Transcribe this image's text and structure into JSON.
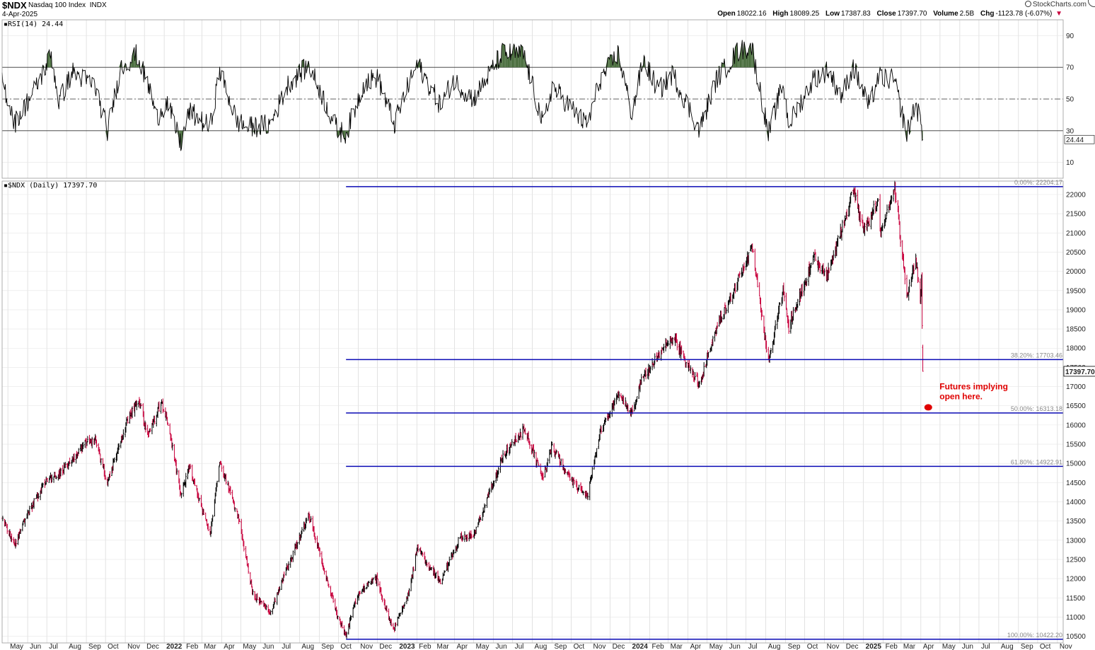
{
  "header": {
    "symbol": "$NDX",
    "name": "Nasdaq 100 Index",
    "exchange": "INDX",
    "date": "4-Apr-2025",
    "brand": "StockCharts.com",
    "open_label": "Open",
    "open": "18022.16",
    "high_label": "High",
    "high": "18089.25",
    "low_label": "Low",
    "low": "17387.83",
    "close_label": "Close",
    "close": "17397.70",
    "volume_label": "Volume",
    "volume": "2.5B",
    "chg_label": "Chg",
    "chg": "-1123.78 (-6.07%)",
    "chg_arrow": "▼"
  },
  "colors": {
    "grid": "#d0d0d0",
    "fib_line": "#0a0ab4",
    "up_bar": "#000000",
    "down_bar": "#c8003c",
    "rsi_line": "#000000",
    "rsi_fill": "#4a6e3e",
    "annotation": "#e00000"
  },
  "chart_data": [
    {
      "type": "line",
      "label": "RSI(14) 24.44",
      "series": [
        {
          "name": "RSI(14)",
          "last": 24.44
        }
      ],
      "ylim": [
        0,
        100
      ],
      "y_ticks": [
        10,
        30,
        50,
        70,
        90
      ],
      "ref_levels": [
        30,
        50,
        70
      ],
      "keypoints": [
        [
          "2021-04-22",
          62
        ],
        [
          "2021-05-12",
          35
        ],
        [
          "2021-06-15",
          58
        ],
        [
          "2021-07-08",
          78
        ],
        [
          "2021-07-20",
          48
        ],
        [
          "2021-08-10",
          67
        ],
        [
          "2021-09-15",
          58
        ],
        [
          "2021-10-04",
          30
        ],
        [
          "2021-10-25",
          70
        ],
        [
          "2021-11-19",
          78
        ],
        [
          "2021-12-10",
          55
        ],
        [
          "2021-12-20",
          38
        ],
        [
          "2022-01-05",
          48
        ],
        [
          "2022-01-27",
          22
        ],
        [
          "2022-02-10",
          42
        ],
        [
          "2022-03-14",
          32
        ],
        [
          "2022-03-29",
          68
        ],
        [
          "2022-04-25",
          36
        ],
        [
          "2022-05-12",
          32
        ],
        [
          "2022-06-16",
          34
        ],
        [
          "2022-07-15",
          60
        ],
        [
          "2022-08-16",
          71
        ],
        [
          "2022-09-30",
          30
        ],
        [
          "2022-10-13",
          28
        ],
        [
          "2022-11-10",
          60
        ],
        [
          "2022-12-01",
          64
        ],
        [
          "2022-12-28",
          34
        ],
        [
          "2023-01-15",
          55
        ],
        [
          "2023-02-02",
          72
        ],
        [
          "2023-03-10",
          46
        ],
        [
          "2023-03-30",
          62
        ],
        [
          "2023-05-01",
          50
        ],
        [
          "2023-06-15",
          79
        ],
        [
          "2023-07-19",
          78
        ],
        [
          "2023-08-18",
          33
        ],
        [
          "2023-09-01",
          58
        ],
        [
          "2023-10-26",
          33
        ],
        [
          "2023-11-15",
          62
        ],
        [
          "2023-12-14",
          79
        ],
        [
          "2024-01-04",
          40
        ],
        [
          "2024-01-22",
          75
        ],
        [
          "2024-02-15",
          55
        ],
        [
          "2024-03-08",
          66
        ],
        [
          "2024-04-19",
          30
        ],
        [
          "2024-05-15",
          62
        ],
        [
          "2024-06-18",
          80
        ],
        [
          "2024-07-10",
          83
        ],
        [
          "2024-08-05",
          28
        ],
        [
          "2024-08-28",
          60
        ],
        [
          "2024-09-06",
          34
        ],
        [
          "2024-10-15",
          63
        ],
        [
          "2024-11-06",
          68
        ],
        [
          "2024-11-28",
          52
        ],
        [
          "2024-12-16",
          70
        ],
        [
          "2025-01-10",
          45
        ],
        [
          "2025-01-24",
          64
        ],
        [
          "2025-02-18",
          62
        ],
        [
          "2025-03-10",
          28
        ],
        [
          "2025-03-24",
          48
        ],
        [
          "2025-03-31",
          35
        ],
        [
          "2025-04-04",
          24.44
        ]
      ]
    },
    {
      "type": "bar",
      "label": "$NDX (Daily) 17397.70",
      "series": [
        {
          "name": "$NDX (Daily)",
          "last": 17397.7
        }
      ],
      "ylim": [
        10400,
        22350
      ],
      "y_ticks": [
        10500,
        11000,
        11500,
        12000,
        12500,
        13000,
        13500,
        14000,
        14500,
        15000,
        15500,
        16000,
        16500,
        17000,
        17500,
        18000,
        18500,
        19000,
        19500,
        20000,
        20500,
        21000,
        21500,
        22000
      ],
      "last_price_tag": "17397.70",
      "x_ticks": [
        "May",
        "Jun",
        "Jul",
        "Aug",
        "Sep",
        "Oct",
        "Nov",
        "Dec",
        "2022",
        "Feb",
        "Mar",
        "Apr",
        "May",
        "Jun",
        "Jul",
        "Aug",
        "Sep",
        "Oct",
        "Nov",
        "Dec",
        "2023",
        "Feb",
        "Mar",
        "Apr",
        "May",
        "Jun",
        "Jul",
        "Aug",
        "Sep",
        "Oct",
        "Nov",
        "Dec",
        "2024",
        "Feb",
        "Mar",
        "Apr",
        "May",
        "Jun",
        "Jul",
        "Aug",
        "Sep",
        "Oct",
        "Nov",
        "Dec",
        "2025",
        "Feb",
        "Mar",
        "Apr",
        "May",
        "Jun",
        "Jul",
        "Aug",
        "Sep",
        "Oct",
        "Nov"
      ],
      "x_tick_bold": [
        "2022",
        "2023",
        "2024",
        "2025"
      ],
      "x_range": [
        "2021-04-22",
        "2025-11-10"
      ],
      "price_keypoints": [
        [
          "2021-04-22",
          13550
        ],
        [
          "2021-05-12",
          12900
        ],
        [
          "2021-06-01",
          13700
        ],
        [
          "2021-07-01",
          14600
        ],
        [
          "2021-07-20",
          14700
        ],
        [
          "2021-08-31",
          15550
        ],
        [
          "2021-09-15",
          15600
        ],
        [
          "2021-10-04",
          14500
        ],
        [
          "2021-10-29",
          15850
        ],
        [
          "2021-11-22",
          16700
        ],
        [
          "2021-12-06",
          15700
        ],
        [
          "2021-12-27",
          16600
        ],
        [
          "2022-01-05",
          16200
        ],
        [
          "2022-01-27",
          14200
        ],
        [
          "2022-02-10",
          14900
        ],
        [
          "2022-03-14",
          13100
        ],
        [
          "2022-03-29",
          15100
        ],
        [
          "2022-04-28",
          13500
        ],
        [
          "2022-05-20",
          11600
        ],
        [
          "2022-06-16",
          11100
        ],
        [
          "2022-07-08",
          12100
        ],
        [
          "2022-08-16",
          13650
        ],
        [
          "2022-09-30",
          11000
        ],
        [
          "2022-10-13",
          10500
        ],
        [
          "2022-10-27",
          11400
        ],
        [
          "2022-11-11",
          11800
        ],
        [
          "2022-11-30",
          12000
        ],
        [
          "2022-12-20",
          10900
        ],
        [
          "2022-12-28",
          10700
        ],
        [
          "2023-01-20",
          11700
        ],
        [
          "2023-02-02",
          12800
        ],
        [
          "2023-03-10",
          11900
        ],
        [
          "2023-04-10",
          13100
        ],
        [
          "2023-05-01",
          13100
        ],
        [
          "2023-06-15",
          15150
        ],
        [
          "2023-07-19",
          15900
        ],
        [
          "2023-08-18",
          14600
        ],
        [
          "2023-09-01",
          15450
        ],
        [
          "2023-09-25",
          14700
        ],
        [
          "2023-10-26",
          14100
        ],
        [
          "2023-11-15",
          15800
        ],
        [
          "2023-12-14",
          16800
        ],
        [
          "2024-01-04",
          16300
        ],
        [
          "2024-01-22",
          17300
        ],
        [
          "2024-02-15",
          17800
        ],
        [
          "2024-03-08",
          18300
        ],
        [
          "2024-04-19",
          17050
        ],
        [
          "2024-05-15",
          18500
        ],
        [
          "2024-06-18",
          19750
        ],
        [
          "2024-07-10",
          20650
        ],
        [
          "2024-08-05",
          17650
        ],
        [
          "2024-08-28",
          19500
        ],
        [
          "2024-09-06",
          18550
        ],
        [
          "2024-10-15",
          20400
        ],
        [
          "2024-11-04",
          19800
        ],
        [
          "2024-12-16",
          22100
        ],
        [
          "2025-01-02",
          21000
        ],
        [
          "2025-01-24",
          21900
        ],
        [
          "2025-01-27",
          21000
        ],
        [
          "2025-02-19",
          22150
        ],
        [
          "2025-03-10",
          19400
        ],
        [
          "2025-03-24",
          20300
        ],
        [
          "2025-03-31",
          19200
        ],
        [
          "2025-04-02",
          19750
        ],
        [
          "2025-04-03",
          18500
        ],
        [
          "2025-04-04",
          17397.7
        ]
      ],
      "fib_start_date": "2022-10-13",
      "fib_levels": [
        {
          "label": "0.00%: 22204.17",
          "value": 22204.17
        },
        {
          "label": "38.20%: 17703.46",
          "value": 17703.46
        },
        {
          "label": "50.00%: 16313.18",
          "value": 16313.18
        },
        {
          "label": "61.80%: 14922.91",
          "value": 14922.91
        },
        {
          "label": "100.00%: 10422.20",
          "value": 10422.2
        }
      ],
      "annotation": {
        "lines": [
          "Futures implying",
          "open here."
        ],
        "marker_date": "2025-04-07",
        "marker_value": 16460
      }
    }
  ]
}
